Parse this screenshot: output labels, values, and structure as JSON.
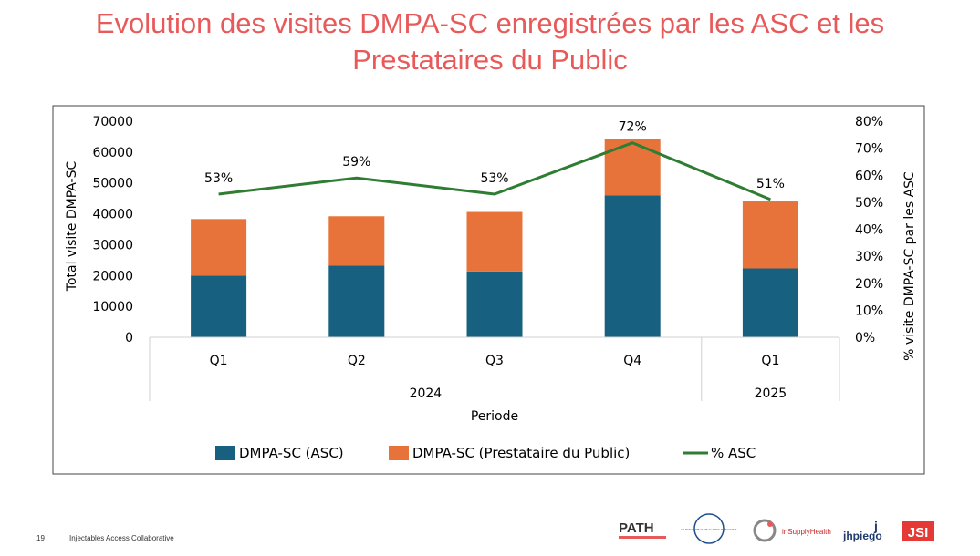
{
  "slide": {
    "title_line1": "Evolution des visites DMPA-SC enregistrées par les ASC et les",
    "title_line2": "Prestataires du Public",
    "page_number": "19",
    "footer_text": "Injectables Access Collaborative"
  },
  "logos": {
    "path": "PATH",
    "clinton": "CLINTON HEALTH ACCESS INITIATIVE",
    "insupply": "inSupplyHealth",
    "jhpiego": "jhpiego",
    "jsi": "JSI"
  },
  "chart_data": {
    "type": "bar",
    "stacked": true,
    "categories": [
      "Q1",
      "Q2",
      "Q3",
      "Q4",
      "Q1"
    ],
    "groups": [
      {
        "label": "2024",
        "count": 4
      },
      {
        "label": "2025",
        "count": 1
      }
    ],
    "series": [
      {
        "name": "DMPA-SC (ASC)",
        "color": "#17607f",
        "values": [
          20000,
          23200,
          21300,
          46000,
          22300
        ]
      },
      {
        "name": "DMPA-SC (Prestataire du Public)",
        "color": "#e8733a",
        "values": [
          18300,
          16000,
          19300,
          18300,
          21700
        ]
      }
    ],
    "line_series": {
      "name": "% ASC",
      "color": "#2e7d32",
      "values": [
        0.53,
        0.59,
        0.53,
        0.72,
        0.51
      ],
      "labels": [
        "53%",
        "59%",
        "53%",
        "72%",
        "51%"
      ]
    },
    "xlabel": "Periode",
    "ylabel": "Total visite DMPA-SC",
    "y2label": "% visite DMPA-SC par les ASC",
    "ylim": [
      0,
      70000
    ],
    "yticks": [
      "0",
      "10000",
      "20000",
      "30000",
      "40000",
      "50000",
      "60000",
      "70000"
    ],
    "y2lim": [
      0,
      0.8
    ],
    "y2ticks": [
      "0%",
      "10%",
      "20%",
      "30%",
      "40%",
      "50%",
      "60%",
      "70%",
      "80%"
    ],
    "legend_position": "bottom"
  }
}
